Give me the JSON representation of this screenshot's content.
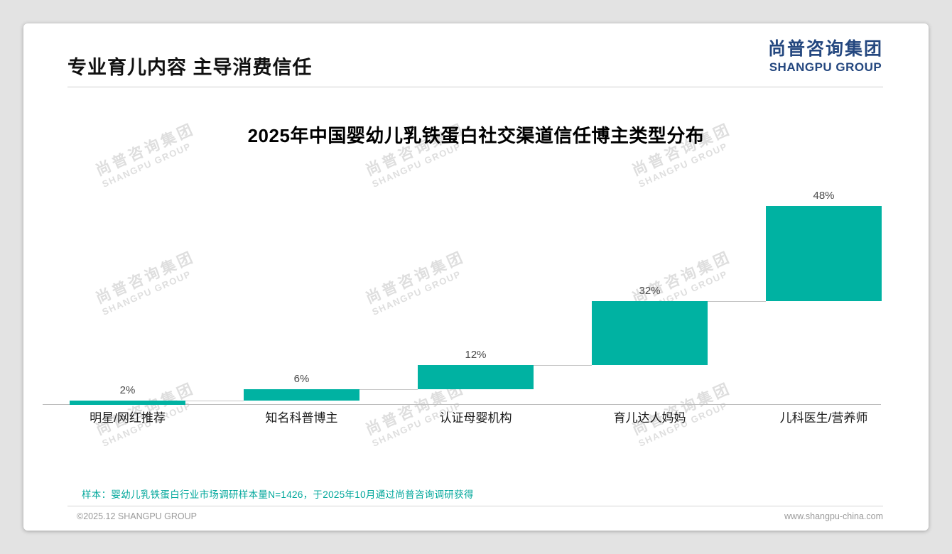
{
  "page": {
    "title": "专业育儿内容 主导消费信任",
    "logo": {
      "cn": "尚普咨询集团",
      "en": "SHANGPU GROUP"
    },
    "watermark": {
      "cn": "尚普咨询集团",
      "en": "SHANGPU GROUP"
    },
    "note": "样本：婴幼儿乳铁蛋白行业市场调研样本量N=1426，于2025年10月通过尚普咨询调研获得",
    "footer": {
      "left": "©2025.12 SHANGPU GROUP",
      "right": "www.shangpu-china.com"
    }
  },
  "colors": {
    "bar": "#00B2A2",
    "note": "#00A79B",
    "logo": "#24477F",
    "watermark": "#c4c4c4",
    "title": "#111111"
  },
  "chart_data": {
    "type": "bar",
    "variant": "ascending-staircase (each bar rests on cumulative total of previous bars; heights proportional to own value; steps connected by thin lines)",
    "title": "2025年中国婴幼儿乳铁蛋白社交渠道信任博主类型分布",
    "categories": [
      "明星/网红推荐",
      "知名科普博主",
      "认证母婴机构",
      "育儿达人妈妈",
      "儿科医生/营养师"
    ],
    "values": [
      2,
      6,
      12,
      32,
      48
    ],
    "labels": [
      "2%",
      "6%",
      "12%",
      "32%",
      "48%"
    ],
    "unit": "%",
    "xlabel": "",
    "ylabel": "",
    "ylim": [
      0,
      100
    ],
    "grid": false,
    "legend": false
  }
}
